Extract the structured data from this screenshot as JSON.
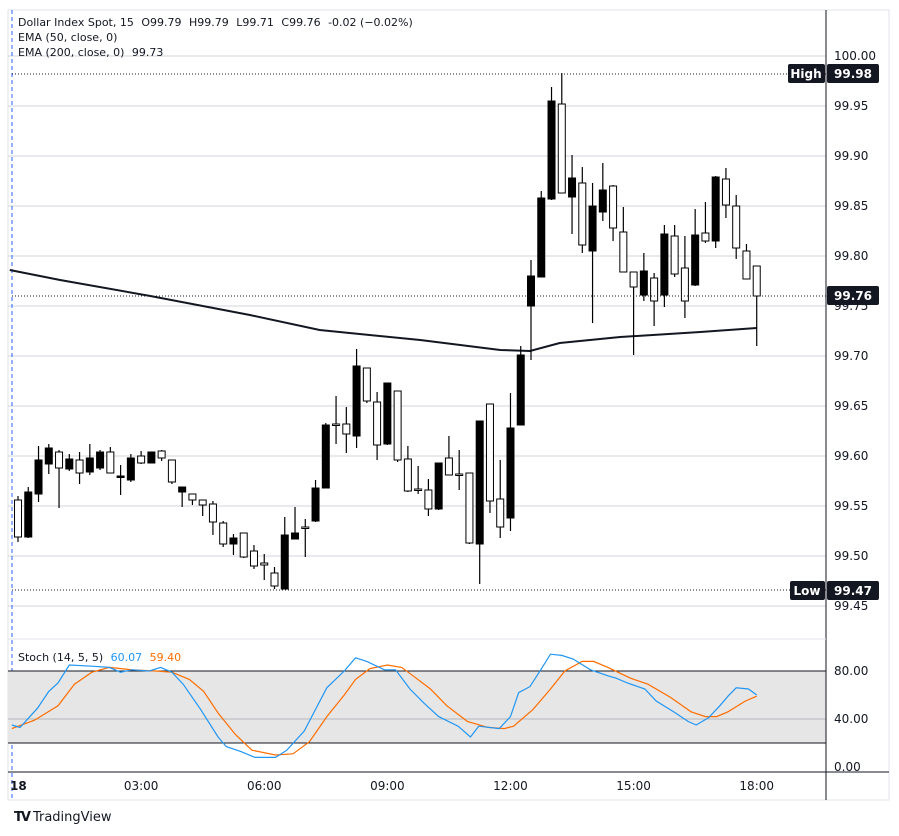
{
  "legend": {
    "symbol": "Dollar Index Spot, 15",
    "open": "O99.79",
    "high": "H99.79",
    "low": "L99.71",
    "close": "C99.76",
    "change": "-0.02 (−0.02%)",
    "ema50": "EMA (50, close, 0)",
    "ema200": "EMA (200, close, 0)",
    "ema200_value": "99.73"
  },
  "stoch_legend": {
    "label": "Stoch (14, 5, 5)",
    "k_value": "60.07",
    "d_value": "59.40"
  },
  "markers": {
    "high_label": "High",
    "high_value": "99.98",
    "low_label": "Low",
    "low_value": "99.47",
    "last_value": "99.76"
  },
  "brand": {
    "logo_text": "TradingView"
  },
  "colors": {
    "up": "#000000",
    "down": "#ffffff",
    "ema": "#131722",
    "stoch_k": "#2196f3",
    "stoch_d": "#ff6d00",
    "band": "#e6e6e6",
    "grid": "#d1d4dc"
  },
  "chart_data": [
    {
      "type": "candlestick",
      "title": "Dollar Index Spot, 15",
      "ylim": [
        99.43,
        100.045
      ],
      "yticks": [
        "100.00",
        "99.95",
        "99.90",
        "99.85",
        "99.80",
        "99.75",
        "99.70",
        "99.65",
        "99.60",
        "99.55",
        "99.50",
        "99.45"
      ],
      "ytick_values": [
        100.0,
        99.95,
        99.9,
        99.85,
        99.8,
        99.75,
        99.7,
        99.65,
        99.6,
        99.55,
        99.5,
        99.45
      ],
      "xticks": [
        {
          "label": "18",
          "index": -0.4
        },
        {
          "label": "03:00",
          "index": 12
        },
        {
          "label": "06:00",
          "index": 24
        },
        {
          "label": "09:00",
          "index": 36
        },
        {
          "label": "12:00",
          "index": 48
        },
        {
          "label": "15:00",
          "index": 60
        },
        {
          "label": "18:00",
          "index": 72
        }
      ],
      "high": 99.98,
      "low": 99.47,
      "last": 99.76,
      "ohlc": [
        [
          99.556,
          99.56,
          99.514,
          99.519
        ],
        [
          99.519,
          99.569,
          99.518,
          99.564
        ],
        [
          99.562,
          99.61,
          99.554,
          99.596
        ],
        [
          99.592,
          99.612,
          99.582,
          99.608
        ],
        [
          99.604,
          99.606,
          99.548,
          99.588
        ],
        [
          99.587,
          99.602,
          99.585,
          99.597
        ],
        [
          99.596,
          99.604,
          99.572,
          99.583
        ],
        [
          99.584,
          99.612,
          99.581,
          99.598
        ],
        [
          99.588,
          99.606,
          99.586,
          99.604
        ],
        [
          99.604,
          99.609,
          99.583,
          99.583
        ],
        [
          99.579,
          99.591,
          99.561,
          99.58
        ],
        [
          99.576,
          99.602,
          99.574,
          99.598
        ],
        [
          99.6,
          99.605,
          99.592,
          99.593
        ],
        [
          99.593,
          99.604,
          99.593,
          99.604
        ],
        [
          99.605,
          99.606,
          99.595,
          99.598
        ],
        [
          99.596,
          99.596,
          99.572,
          99.574
        ],
        [
          99.564,
          99.569,
          99.549,
          99.569
        ],
        [
          99.562,
          99.562,
          99.551,
          99.556
        ],
        [
          99.556,
          99.556,
          99.54,
          99.551
        ],
        [
          99.552,
          99.555,
          99.521,
          99.534
        ],
        [
          99.533,
          99.535,
          99.509,
          99.512
        ],
        [
          99.512,
          99.522,
          99.501,
          99.518
        ],
        [
          99.523,
          99.523,
          99.498,
          99.499
        ],
        [
          99.505,
          99.511,
          99.487,
          99.49
        ],
        [
          99.493,
          99.502,
          99.476,
          99.491
        ],
        [
          99.483,
          99.489,
          99.467,
          99.47
        ],
        [
          99.467,
          99.539,
          99.467,
          99.521
        ],
        [
          99.517,
          99.549,
          99.517,
          99.523
        ],
        [
          99.529,
          99.537,
          99.499,
          99.528
        ],
        [
          99.535,
          99.576,
          99.534,
          99.568
        ],
        [
          99.568,
          99.633,
          99.568,
          99.631
        ],
        [
          99.632,
          99.66,
          99.612,
          99.631
        ],
        [
          99.632,
          99.649,
          99.603,
          99.622
        ],
        [
          99.62,
          99.707,
          99.608,
          99.69
        ],
        [
          99.688,
          99.688,
          99.653,
          99.655
        ],
        [
          99.654,
          99.664,
          99.596,
          99.611
        ],
        [
          99.612,
          99.673,
          99.611,
          99.673
        ],
        [
          99.665,
          99.665,
          99.594,
          99.596
        ],
        [
          99.597,
          99.61,
          99.564,
          99.565
        ],
        [
          99.567,
          99.59,
          99.562,
          99.566
        ],
        [
          99.566,
          99.577,
          99.54,
          99.547
        ],
        [
          99.547,
          99.593,
          99.546,
          99.593
        ],
        [
          99.598,
          99.62,
          99.581,
          99.581
        ],
        [
          99.582,
          99.606,
          99.566,
          99.581
        ],
        [
          99.583,
          99.583,
          99.512,
          99.513
        ],
        [
          99.512,
          99.635,
          99.472,
          99.635
        ],
        [
          99.652,
          99.652,
          99.543,
          99.555
        ],
        [
          99.557,
          99.596,
          99.518,
          99.529
        ],
        [
          99.538,
          99.663,
          99.525,
          99.628
        ],
        [
          99.631,
          99.71,
          99.631,
          99.701
        ],
        [
          99.75,
          99.796,
          99.696,
          99.78
        ],
        [
          99.779,
          99.865,
          99.779,
          99.858
        ],
        [
          99.857,
          99.969,
          99.856,
          99.955
        ],
        [
          99.952,
          99.983,
          99.863,
          99.863
        ],
        [
          99.859,
          99.901,
          99.822,
          99.878
        ],
        [
          99.873,
          99.889,
          99.803,
          99.811
        ],
        [
          99.805,
          99.873,
          99.733,
          99.85
        ],
        [
          99.844,
          99.893,
          99.835,
          99.866
        ],
        [
          99.87,
          99.871,
          99.815,
          99.828
        ],
        [
          99.824,
          99.849,
          99.784,
          99.784
        ],
        [
          99.784,
          99.784,
          99.701,
          99.769
        ],
        [
          99.761,
          99.803,
          99.755,
          99.785
        ],
        [
          99.778,
          99.783,
          99.73,
          99.755
        ],
        [
          99.761,
          99.831,
          99.749,
          99.822
        ],
        [
          99.82,
          99.831,
          99.779,
          99.782
        ],
        [
          99.788,
          99.82,
          99.738,
          99.755
        ],
        [
          99.771,
          99.847,
          99.77,
          99.821
        ],
        [
          99.823,
          99.854,
          99.813,
          99.815
        ],
        [
          99.815,
          99.88,
          99.808,
          99.879
        ],
        [
          99.877,
          99.888,
          99.838,
          99.851
        ],
        [
          99.85,
          99.861,
          99.797,
          99.808
        ],
        [
          99.805,
          99.812,
          99.777,
          99.777
        ],
        [
          99.79,
          99.79,
          99.71,
          99.76
        ]
      ],
      "ema200": [
        [
          -0.8,
          99.786
        ],
        [
          4.1,
          99.776
        ],
        [
          12.9,
          99.76
        ],
        [
          22.6,
          99.741
        ],
        [
          29.4,
          99.726
        ],
        [
          39.2,
          99.716
        ],
        [
          47,
          99.706
        ],
        [
          49.9,
          99.705
        ],
        [
          52.8,
          99.713
        ],
        [
          58.7,
          99.719
        ],
        [
          66.5,
          99.724
        ],
        [
          72,
          99.728
        ]
      ]
    },
    {
      "type": "line",
      "title": "Stoch (14, 5, 5)",
      "ylim": [
        0,
        100
      ],
      "yticks": [
        "80.00",
        "40.00",
        "0.00"
      ],
      "ytick_values": [
        80,
        40,
        0
      ],
      "band": [
        20,
        80
      ],
      "series": [
        {
          "name": "%K",
          "value": 60.07,
          "points": [
            [
              -0.6,
              35
            ],
            [
              0.2,
              33
            ],
            [
              1.9,
              49
            ],
            [
              3.0,
              63
            ],
            [
              3.9,
              70
            ],
            [
              5.0,
              85
            ],
            [
              7.2,
              84
            ],
            [
              8.9,
              83
            ],
            [
              10.0,
              79
            ],
            [
              11.1,
              81
            ],
            [
              12.8,
              80
            ],
            [
              13.9,
              83
            ],
            [
              15.0,
              79
            ],
            [
              16.1,
              69
            ],
            [
              17.8,
              48
            ],
            [
              19.5,
              25
            ],
            [
              20.3,
              17
            ],
            [
              21.7,
              13
            ],
            [
              23.1,
              8
            ],
            [
              25.1,
              8
            ],
            [
              26.2,
              14
            ],
            [
              27.9,
              30
            ],
            [
              29.0,
              48
            ],
            [
              30.1,
              66
            ],
            [
              31.8,
              80
            ],
            [
              32.9,
              91
            ],
            [
              34.0,
              88
            ],
            [
              35.7,
              81
            ],
            [
              36.8,
              81
            ],
            [
              38.2,
              65
            ],
            [
              39.6,
              53
            ],
            [
              41.0,
              42
            ],
            [
              42.9,
              34
            ],
            [
              44.1,
              25
            ],
            [
              44.9,
              34
            ],
            [
              46.9,
              32
            ],
            [
              48.0,
              42
            ],
            [
              48.8,
              62
            ],
            [
              49.9,
              67
            ],
            [
              50.8,
              79
            ],
            [
              51.9,
              94
            ],
            [
              53.0,
              93
            ],
            [
              54.1,
              90
            ],
            [
              55.8,
              81
            ],
            [
              57.5,
              76
            ],
            [
              58.3,
              74
            ],
            [
              59.4,
              70
            ],
            [
              61.1,
              65
            ],
            [
              62.2,
              55
            ],
            [
              63.9,
              46
            ],
            [
              65.3,
              38
            ],
            [
              66.1,
              35
            ],
            [
              67.3,
              41
            ],
            [
              68.4,
              51
            ],
            [
              69.2,
              59
            ],
            [
              70.0,
              66
            ],
            [
              71.2,
              65
            ],
            [
              72.0,
              60
            ]
          ]
        },
        {
          "name": "%D",
          "value": 59.4,
          "points": [
            [
              -0.6,
              32
            ],
            [
              1.6,
              39
            ],
            [
              3.9,
              51
            ],
            [
              5.5,
              69
            ],
            [
              7.2,
              79
            ],
            [
              8.9,
              83
            ],
            [
              11.1,
              81
            ],
            [
              13.4,
              80
            ],
            [
              15.0,
              79
            ],
            [
              16.7,
              73
            ],
            [
              18.1,
              63
            ],
            [
              19.5,
              45
            ],
            [
              21.2,
              27
            ],
            [
              22.8,
              14
            ],
            [
              25.1,
              10
            ],
            [
              26.8,
              11
            ],
            [
              28.4,
              21
            ],
            [
              30.1,
              42
            ],
            [
              31.8,
              60
            ],
            [
              32.9,
              73
            ],
            [
              34.3,
              82
            ],
            [
              36.0,
              85
            ],
            [
              37.4,
              83
            ],
            [
              38.5,
              76
            ],
            [
              40.2,
              65
            ],
            [
              41.8,
              51
            ],
            [
              43.8,
              38
            ],
            [
              45.8,
              33
            ],
            [
              47.4,
              32
            ],
            [
              48.3,
              34
            ],
            [
              50.2,
              48
            ],
            [
              51.9,
              65
            ],
            [
              53.3,
              80
            ],
            [
              55.0,
              88
            ],
            [
              56.1,
              88
            ],
            [
              57.5,
              83
            ],
            [
              59.7,
              74
            ],
            [
              61.4,
              69
            ],
            [
              63.6,
              58
            ],
            [
              65.6,
              46
            ],
            [
              67.0,
              42
            ],
            [
              68.1,
              42
            ],
            [
              69.2,
              46
            ],
            [
              70.9,
              55
            ],
            [
              72.0,
              59
            ]
          ]
        }
      ]
    }
  ]
}
